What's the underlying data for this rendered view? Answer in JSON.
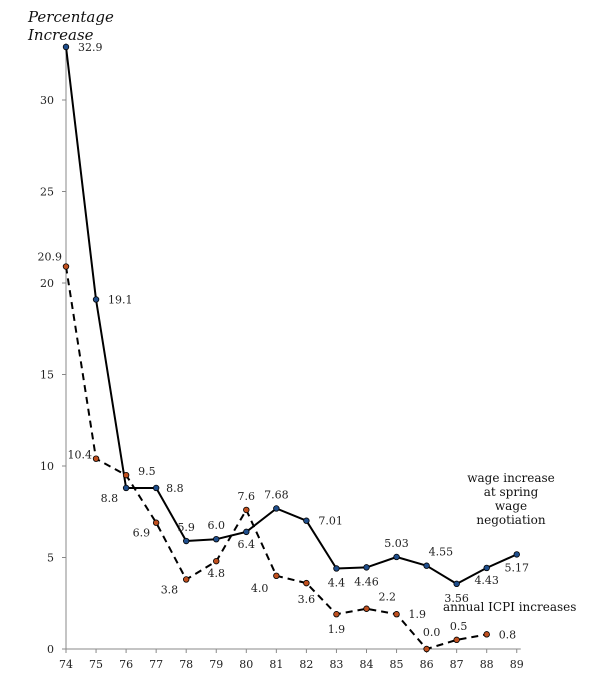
{
  "chart_data": {
    "type": "line",
    "title": "",
    "ylabel": [
      "Percentage",
      "Increase"
    ],
    "xlabel": "",
    "ylim": [
      0,
      33
    ],
    "yticks": [
      0,
      5,
      10,
      15,
      20,
      25,
      30
    ],
    "grid": false,
    "x": [
      "74",
      "75",
      "76",
      "77",
      "78",
      "79",
      "80",
      "81",
      "82",
      "83",
      "84",
      "85",
      "86",
      "87",
      "88",
      "89"
    ],
    "series": [
      {
        "name": "wage increase at spring wage negotiation",
        "style": "solid",
        "marker_color": "#1f4e8c",
        "x": [
          "74",
          "75",
          "76",
          "77",
          "78",
          "79",
          "80",
          "81",
          "82",
          "83",
          "84",
          "85",
          "86",
          "87",
          "88",
          "89"
        ],
        "values": [
          32.9,
          19.1,
          8.8,
          8.8,
          5.9,
          6.0,
          6.4,
          7.68,
          7.01,
          4.4,
          4.46,
          5.03,
          4.55,
          3.56,
          4.43,
          5.17
        ],
        "labels": [
          "32.9",
          "19.1",
          "8.8",
          "8.8",
          "5.9",
          "6.0",
          "6.4",
          "7.68",
          "7.01",
          "4.4",
          "4.46",
          "5.03",
          "4.55",
          "3.56",
          "4.43",
          "5.17"
        ]
      },
      {
        "name": "annual ICPI increases",
        "style": "dashed",
        "marker_color": "#c0501f",
        "x": [
          "74",
          "75",
          "76",
          "77",
          "78",
          "79",
          "80",
          "81",
          "82",
          "83",
          "84",
          "85",
          "86",
          "87",
          "88"
        ],
        "values": [
          20.9,
          10.4,
          9.5,
          6.9,
          3.8,
          4.8,
          7.6,
          4.0,
          3.6,
          1.9,
          2.2,
          1.9,
          0.0,
          0.5,
          0.8
        ],
        "labels": [
          "20.9",
          "10.4",
          "9.5",
          "6.9",
          "3.8",
          "4.8",
          "7.6",
          "4.0",
          "3.6",
          "1.9",
          "2.2",
          "1.9",
          "0.0",
          "0.5",
          "0.8"
        ]
      }
    ],
    "annotations": {
      "wage": [
        "wage increase",
        "at spring",
        "wage",
        "negotiation"
      ],
      "icpi": "annual ICPI increases"
    }
  }
}
